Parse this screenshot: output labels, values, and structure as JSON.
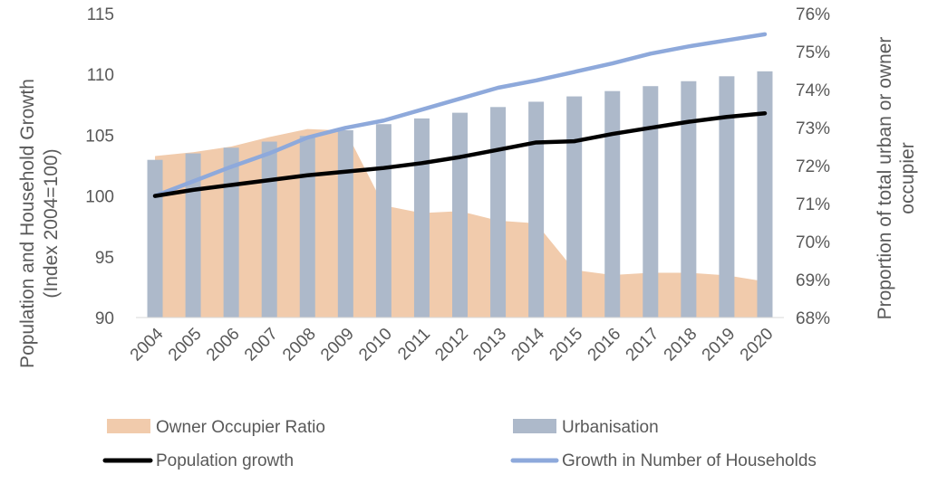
{
  "chart_data": {
    "type": "bar",
    "categories": [
      "2004",
      "2005",
      "2006",
      "2007",
      "2008",
      "2009",
      "2010",
      "2011",
      "2012",
      "2013",
      "2014",
      "2015",
      "2016",
      "2017",
      "2018",
      "2019",
      "2020"
    ],
    "y_left": {
      "label_line1": "Population and Household Growth",
      "label_line2": "(Index 2004=100)",
      "lim": [
        90,
        115
      ],
      "ticks": [
        "90",
        "95",
        "100",
        "105",
        "110",
        "115"
      ]
    },
    "y_right": {
      "label_line1": "Proportion of total urban or owner",
      "label_line2": "occupier",
      "lim": [
        0.68,
        0.76
      ],
      "ticks": [
        "68%",
        "69%",
        "70%",
        "71%",
        "72%",
        "73%",
        "74%",
        "75%",
        "76%"
      ]
    },
    "series": [
      {
        "name": "Owner Occupier Ratio",
        "kind": "area",
        "axis": "right",
        "color": "#F1CBAC",
        "values": [
          0.7225,
          0.7235,
          0.725,
          0.7275,
          0.7296,
          0.7292,
          0.7095,
          0.7075,
          0.708,
          0.7055,
          0.7048,
          0.6925,
          0.6912,
          0.6918,
          0.6918,
          0.6911,
          0.6895
        ]
      },
      {
        "name": "Urbanisation",
        "kind": "bar",
        "axis": "right",
        "color": "#ADB9CA",
        "values": [
          0.7215,
          0.7232,
          0.7247,
          0.7263,
          0.7278,
          0.7293,
          0.7309,
          0.7324,
          0.7339,
          0.7354,
          0.7368,
          0.7382,
          0.7396,
          0.7409,
          0.7422,
          0.7435,
          0.7448
        ]
      },
      {
        "name": "Population growth",
        "kind": "line",
        "axis": "left",
        "color": "#000000",
        "values": [
          100.0,
          100.5,
          100.9,
          101.3,
          101.7,
          102.0,
          102.3,
          102.7,
          103.2,
          103.8,
          104.4,
          104.5,
          105.1,
          105.6,
          106.1,
          106.5,
          106.8
        ]
      },
      {
        "name": "Growth in Number of Households",
        "kind": "line",
        "axis": "left",
        "color": "#8EA9DB",
        "values": [
          100.0,
          101.2,
          102.4,
          103.5,
          104.8,
          105.6,
          106.2,
          107.1,
          108.0,
          108.9,
          109.5,
          110.2,
          110.9,
          111.7,
          112.3,
          112.8,
          113.3
        ]
      }
    ],
    "grid": false,
    "legend_position": "bottom"
  }
}
